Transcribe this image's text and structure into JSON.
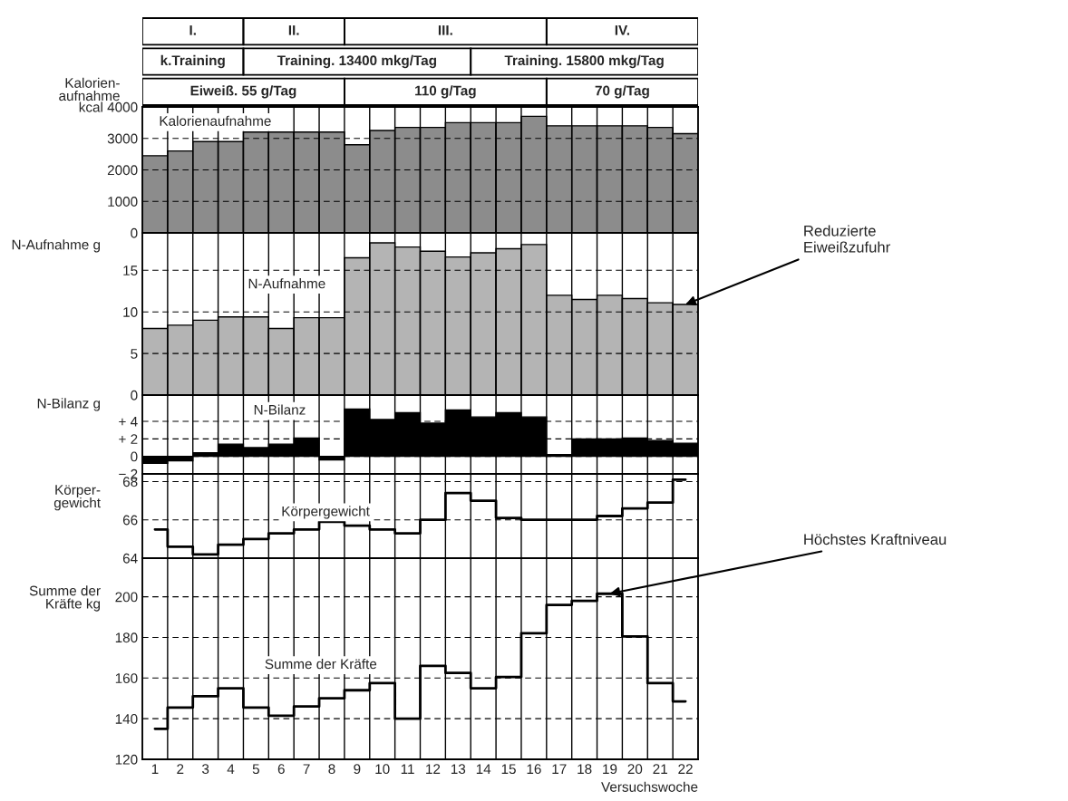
{
  "chart_data": [
    {
      "type": "other",
      "annotations": [
        "I.",
        "II.",
        "III.",
        "IV.",
        "k.Training",
        "Training. 13400 mkg/Tag",
        "Training. 15800 mkg/Tag",
        "Eiweiß. 55 g/Tag",
        "110 g/Tag",
        "70 g/Tag"
      ]
    },
    {
      "type": "bar",
      "title": "Kalorienaufnahme",
      "ylabel": "Kalorien-\naufnahme",
      "categories": [
        "1",
        "2",
        "3",
        "4",
        "5",
        "6",
        "7",
        "8",
        "9",
        "10",
        "11",
        "12",
        "13",
        "14",
        "15",
        "16",
        "17",
        "18",
        "19",
        "20",
        "21",
        "22"
      ],
      "series": [
        {
          "color": "#8c8c8c",
          "values": [
            2450,
            2600,
            2900,
            2900,
            3200,
            3200,
            3200,
            3200,
            2800,
            3250,
            3350,
            3350,
            3500,
            3500,
            3500,
            3700,
            3400,
            3400,
            3400,
            3400,
            3350,
            3150
          ]
        }
      ],
      "ylim": [
        0,
        4000
      ],
      "yticks": [
        0,
        1000,
        2000,
        3000,
        {
          "value": 4000,
          "label": "kcal 4000"
        }
      ],
      "grid": true,
      "tick_labels": "y"
    },
    {
      "type": "bar",
      "title": "N-Aufnahme",
      "ylabel": "N-Aufnahme g",
      "categories": [
        "1",
        "2",
        "3",
        "4",
        "5",
        "6",
        "7",
        "8",
        "9",
        "10",
        "11",
        "12",
        "13",
        "14",
        "15",
        "16",
        "17",
        "18",
        "19",
        "20",
        "21",
        "22"
      ],
      "series": [
        {
          "color": "#b4b4b4",
          "values": [
            8,
            8.4,
            9,
            9.4,
            9.4,
            8,
            9.3,
            9.3,
            16.5,
            18.3,
            17.8,
            17.3,
            16.6,
            17.1,
            17.6,
            18.1,
            12,
            11.5,
            12,
            11.6,
            11.1,
            10.9
          ]
        }
      ],
      "ylim": [
        0,
        19.5
      ],
      "yticks": [
        0,
        5,
        10,
        15
      ],
      "grid": true,
      "tick_labels": "y",
      "annotations": [
        {
          "text": "Reduzierte\nEiweißzufuhr",
          "x": "22",
          "y": 10.9
        }
      ]
    },
    {
      "type": "bar",
      "title": "N-Bilanz",
      "ylabel": "N-Bilanz g",
      "categories": [
        "1",
        "2",
        "3",
        "4",
        "5",
        "6",
        "7",
        "8",
        "9",
        "10",
        "11",
        "12",
        "13",
        "14",
        "15",
        "16",
        "17",
        "18",
        "19",
        "20",
        "21",
        "22"
      ],
      "series": [
        {
          "color": "#000000",
          "values": [
            -0.8,
            -0.5,
            0.4,
            1.4,
            1.0,
            1.4,
            2.1,
            -0.4,
            5.4,
            4.2,
            5.0,
            3.8,
            5.3,
            4.5,
            5.0,
            4.5,
            0.2,
            2.0,
            2.0,
            2.1,
            1.8,
            1.5
          ]
        }
      ],
      "ylim": [
        -2,
        7
      ],
      "yticks": [
        {
          "value": -2,
          "label": "− 2"
        },
        0,
        {
          "value": 2,
          "label": "+ 2"
        },
        {
          "value": 4,
          "label": "+ 4"
        }
      ],
      "grid": true,
      "tick_labels": "y"
    },
    {
      "type": "step",
      "title": "Körpergewicht",
      "ylabel": "Körper-\ngewicht",
      "categories": [
        "1",
        "2",
        "3",
        "4",
        "5",
        "6",
        "7",
        "8",
        "9",
        "10",
        "11",
        "12",
        "13",
        "14",
        "15",
        "16",
        "17",
        "18",
        "19",
        "20",
        "21",
        "22"
      ],
      "series": [
        {
          "color": "#000000",
          "values": [
            65.5,
            64.6,
            64.2,
            64.7,
            65.0,
            65.3,
            65.5,
            65.9,
            65.7,
            65.5,
            65.3,
            66.0,
            67.4,
            67.0,
            66.1,
            66.0,
            66.0,
            66.0,
            66.2,
            66.6,
            66.9,
            68.1
          ]
        }
      ],
      "ylim": [
        64,
        68.4
      ],
      "yticks": [
        64,
        66,
        68
      ],
      "grid": true,
      "tick_labels": "y"
    },
    {
      "type": "step",
      "title": "Summe der Kräfte",
      "ylabel": "Summe der\nKräfte kg",
      "xlabel": "Versuchswoche",
      "categories": [
        "1",
        "2",
        "3",
        "4",
        "5",
        "6",
        "7",
        "8",
        "9",
        "10",
        "11",
        "12",
        "13",
        "14",
        "15",
        "16",
        "17",
        "18",
        "19",
        "20",
        "21",
        "22"
      ],
      "series": [
        {
          "color": "#000000",
          "values": [
            135,
            145.5,
            151,
            155,
            145.5,
            141.5,
            146,
            150,
            154,
            157.5,
            140,
            166,
            162.5,
            155,
            160.5,
            182,
            196,
            198,
            201.5,
            180.5,
            157.5,
            148.5
          ]
        }
      ],
      "ylim": [
        120,
        219
      ],
      "yticks": [
        120,
        140,
        160,
        180,
        200
      ],
      "grid": true,
      "annotations": [
        {
          "text": "Höchstes Kraftniveau",
          "x": "19",
          "y": 201.5
        }
      ]
    }
  ]
}
